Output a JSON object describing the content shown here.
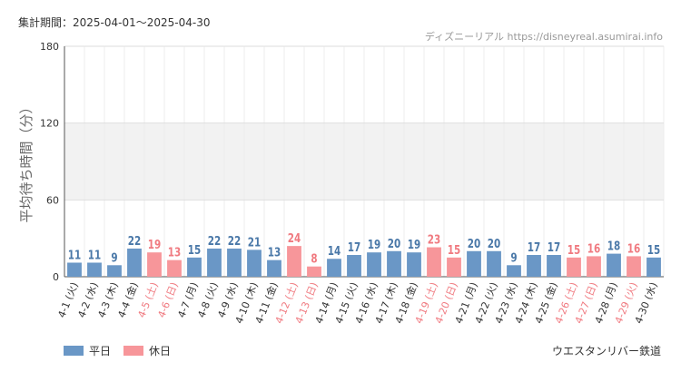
{
  "period_text": "集計期間：2025-04-01～2025-04-30",
  "credit_text": "ディズニーリアル https://disneyreal.asumirai.info",
  "source_text": "ウエスタンリバー鉄道",
  "legend": [
    {
      "label": "平日",
      "color": "#6a97c6"
    },
    {
      "label": "休日",
      "color": "#f7969a"
    }
  ],
  "chart_data": {
    "type": "bar",
    "ylabel": "平均待ち時間（分）",
    "ylim": [
      0,
      180
    ],
    "yticks": [
      0,
      60,
      120,
      180
    ],
    "grid": true,
    "colors": {
      "weekday_bar": "#6a97c6",
      "holiday_bar": "#f7969a",
      "weekday_label": "#4a78a8",
      "holiday_label": "#f07a80"
    },
    "categories": [
      "4-1 (火)",
      "4-2 (水)",
      "4-3 (木)",
      "4-4 (金)",
      "4-5 (土)",
      "4-6 (日)",
      "4-7 (月)",
      "4-8 (火)",
      "4-9 (水)",
      "4-10 (木)",
      "4-11 (金)",
      "4-12 (土)",
      "4-13 (日)",
      "4-14 (月)",
      "4-15 (火)",
      "4-16 (水)",
      "4-17 (木)",
      "4-18 (金)",
      "4-19 (土)",
      "4-20 (日)",
      "4-21 (月)",
      "4-22 (火)",
      "4-23 (水)",
      "4-24 (木)",
      "4-25 (金)",
      "4-26 (土)",
      "4-27 (日)",
      "4-28 (月)",
      "4-29 (火)",
      "4-30 (水)"
    ],
    "values": [
      11,
      11,
      9,
      22,
      19,
      13,
      15,
      22,
      22,
      21,
      13,
      24,
      8,
      14,
      17,
      19,
      20,
      19,
      23,
      15,
      20,
      20,
      9,
      17,
      17,
      15,
      16,
      18,
      16,
      15
    ],
    "holiday": [
      false,
      false,
      false,
      false,
      true,
      true,
      false,
      false,
      false,
      false,
      false,
      true,
      true,
      false,
      false,
      false,
      false,
      false,
      true,
      true,
      false,
      false,
      false,
      false,
      false,
      true,
      true,
      false,
      true,
      false
    ]
  }
}
